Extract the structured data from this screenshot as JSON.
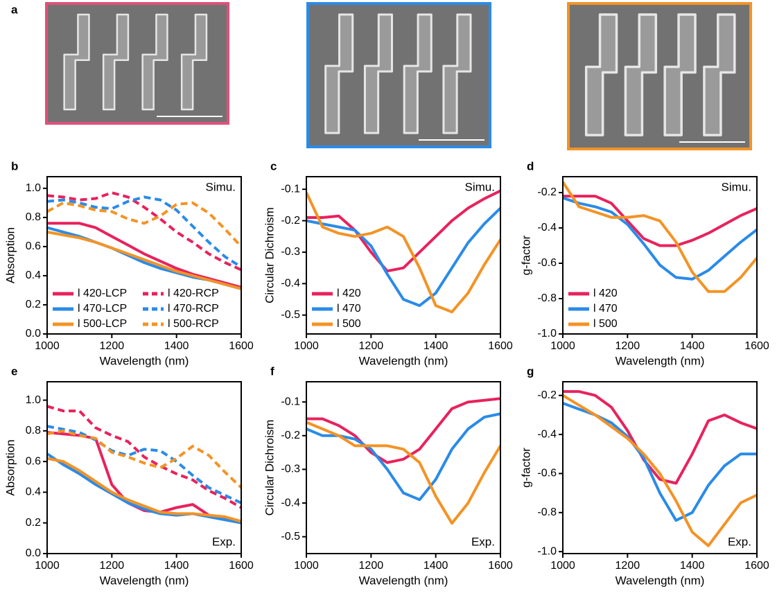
{
  "panel_a": {
    "label": "a"
  },
  "chart_data": [
    {
      "type": "line",
      "panel_label": "b",
      "annotation": "Simu.",
      "xlabel": "Wavelength (nm)",
      "ylabel": "Absorption",
      "x": [
        1000,
        1050,
        1100,
        1150,
        1200,
        1250,
        1300,
        1350,
        1400,
        1450,
        1500,
        1550,
        1600
      ],
      "xlim": [
        1000,
        1600
      ],
      "xticks": [
        1000,
        1200,
        1400,
        1600
      ],
      "ylim": [
        0,
        1.08
      ],
      "yticks": [
        {
          "value": 0,
          "label": "0.0"
        },
        0.2,
        0.4,
        0.6,
        0.8,
        {
          "value": 1,
          "label": "1.0"
        }
      ],
      "legend": "lower left",
      "legend_columns": 2,
      "series": [
        {
          "name": "l 420-LCP",
          "color": "#e8225c",
          "style": "solid",
          "values": [
            0.76,
            0.76,
            0.76,
            0.73,
            0.67,
            0.61,
            0.55,
            0.5,
            0.45,
            0.41,
            0.38,
            0.35,
            0.32
          ]
        },
        {
          "name": "l 470-LCP",
          "color": "#2a8be8",
          "style": "solid",
          "values": [
            0.73,
            0.7,
            0.67,
            0.63,
            0.59,
            0.54,
            0.49,
            0.45,
            0.42,
            0.39,
            0.37,
            0.34,
            0.31
          ]
        },
        {
          "name": "l 500-LCP",
          "color": "#f39325",
          "style": "solid",
          "values": [
            0.7,
            0.68,
            0.66,
            0.63,
            0.59,
            0.55,
            0.51,
            0.47,
            0.43,
            0.4,
            0.37,
            0.34,
            0.31
          ]
        },
        {
          "name": "l 420-RCP",
          "color": "#e8225c",
          "style": "dashed",
          "values": [
            0.95,
            0.94,
            0.92,
            0.93,
            0.97,
            0.94,
            0.87,
            0.79,
            0.7,
            0.63,
            0.55,
            0.49,
            0.44
          ]
        },
        {
          "name": "l 470-RCP",
          "color": "#2a8be8",
          "style": "dashed",
          "values": [
            0.91,
            0.92,
            0.9,
            0.87,
            0.86,
            0.91,
            0.94,
            0.92,
            0.85,
            0.74,
            0.63,
            0.53,
            0.46
          ]
        },
        {
          "name": "l 500-RCP",
          "color": "#f39325",
          "style": "dashed",
          "values": [
            0.84,
            0.9,
            0.88,
            0.85,
            0.84,
            0.79,
            0.76,
            0.81,
            0.89,
            0.9,
            0.83,
            0.72,
            0.6
          ]
        }
      ]
    },
    {
      "type": "line",
      "panel_label": "c",
      "annotation": "Simu.",
      "xlabel": "Wavelength (nm)",
      "ylabel": "Circular Dichroism",
      "x": [
        1000,
        1050,
        1100,
        1150,
        1200,
        1250,
        1300,
        1350,
        1400,
        1450,
        1500,
        1550,
        1600
      ],
      "xlim": [
        1000,
        1600
      ],
      "xticks": [
        1000,
        1200,
        1400,
        1600
      ],
      "ylim": [
        -0.56,
        -0.06
      ],
      "yticks": [
        -0.5,
        -0.4,
        -0.3,
        -0.2,
        -0.1
      ],
      "legend": "lower left",
      "legend_columns": 1,
      "series": [
        {
          "name": "l 420",
          "color": "#e8225c",
          "style": "solid",
          "values": [
            -0.19,
            -0.19,
            -0.185,
            -0.23,
            -0.3,
            -0.36,
            -0.35,
            -0.3,
            -0.25,
            -0.2,
            -0.16,
            -0.13,
            -0.105
          ]
        },
        {
          "name": "l 470",
          "color": "#2a8be8",
          "style": "solid",
          "values": [
            -0.2,
            -0.21,
            -0.22,
            -0.23,
            -0.28,
            -0.37,
            -0.45,
            -0.47,
            -0.43,
            -0.35,
            -0.27,
            -0.21,
            -0.16
          ]
        },
        {
          "name": "l 500",
          "color": "#f39325",
          "style": "solid",
          "values": [
            -0.11,
            -0.22,
            -0.24,
            -0.25,
            -0.24,
            -0.22,
            -0.25,
            -0.35,
            -0.47,
            -0.49,
            -0.43,
            -0.34,
            -0.26
          ]
        }
      ]
    },
    {
      "type": "line",
      "panel_label": "d",
      "annotation": "Simu.",
      "xlabel": "Wavelength (nm)",
      "ylabel": "g-factor",
      "x": [
        1000,
        1050,
        1100,
        1150,
        1200,
        1250,
        1300,
        1350,
        1400,
        1450,
        1500,
        1550,
        1600
      ],
      "xlim": [
        1000,
        1600
      ],
      "xticks": [
        1000,
        1200,
        1400,
        1600
      ],
      "ylim": [
        -1.0,
        -0.11
      ],
      "yticks": [
        {
          "value": -1,
          "label": "-1.0"
        },
        -0.8,
        -0.6,
        -0.4,
        -0.2
      ],
      "legend": "lower left",
      "legend_columns": 1,
      "series": [
        {
          "name": "l 420",
          "color": "#e8225c",
          "style": "solid",
          "values": [
            -0.22,
            -0.22,
            -0.22,
            -0.26,
            -0.36,
            -0.46,
            -0.5,
            -0.5,
            -0.47,
            -0.43,
            -0.38,
            -0.33,
            -0.29
          ]
        },
        {
          "name": "l 470",
          "color": "#2a8be8",
          "style": "solid",
          "values": [
            -0.23,
            -0.26,
            -0.28,
            -0.31,
            -0.38,
            -0.49,
            -0.61,
            -0.68,
            -0.69,
            -0.64,
            -0.56,
            -0.48,
            -0.41
          ]
        },
        {
          "name": "l 500",
          "color": "#f39325",
          "style": "solid",
          "values": [
            -0.14,
            -0.28,
            -0.31,
            -0.34,
            -0.34,
            -0.33,
            -0.36,
            -0.48,
            -0.65,
            -0.76,
            -0.76,
            -0.68,
            -0.57
          ]
        }
      ]
    },
    {
      "type": "line",
      "panel_label": "e",
      "annotation": "Exp.",
      "xlabel": "Wavelength (nm)",
      "ylabel": "Absorption",
      "x": [
        1000,
        1050,
        1100,
        1150,
        1200,
        1250,
        1300,
        1350,
        1400,
        1450,
        1500,
        1550,
        1600
      ],
      "xlim": [
        1000,
        1600
      ],
      "xticks": [
        1000,
        1200,
        1400,
        1600
      ],
      "ylim": [
        0,
        1.12
      ],
      "yticks": [
        {
          "value": 0,
          "label": "0.0"
        },
        0.2,
        0.4,
        0.6,
        0.8,
        {
          "value": 1,
          "label": "1.0"
        }
      ],
      "series": [
        {
          "name": "l 420-LCP",
          "color": "#e8225c",
          "style": "solid",
          "values": [
            0.79,
            0.78,
            0.77,
            0.75,
            0.45,
            0.33,
            0.28,
            0.27,
            0.3,
            0.32,
            0.25,
            0.23,
            0.2
          ]
        },
        {
          "name": "l 470-LCP",
          "color": "#2a8be8",
          "style": "solid",
          "values": [
            0.65,
            0.58,
            0.52,
            0.45,
            0.39,
            0.33,
            0.29,
            0.26,
            0.25,
            0.26,
            0.24,
            0.22,
            0.2
          ]
        },
        {
          "name": "l 500-LCP",
          "color": "#f39325",
          "style": "solid",
          "values": [
            0.62,
            0.6,
            0.54,
            0.47,
            0.4,
            0.35,
            0.31,
            0.27,
            0.26,
            0.26,
            0.25,
            0.24,
            0.21
          ]
        },
        {
          "name": "l 420-RCP",
          "color": "#e8225c",
          "style": "dashed",
          "values": [
            0.96,
            0.93,
            0.93,
            0.82,
            0.77,
            0.73,
            0.63,
            0.57,
            0.52,
            0.48,
            0.41,
            0.36,
            0.3
          ]
        },
        {
          "name": "l 470-RCP",
          "color": "#2a8be8",
          "style": "dashed",
          "values": [
            0.83,
            0.81,
            0.79,
            0.74,
            0.67,
            0.64,
            0.68,
            0.67,
            0.6,
            0.51,
            0.43,
            0.38,
            0.33
          ]
        },
        {
          "name": "l 500-RCP",
          "color": "#f39325",
          "style": "dashed",
          "values": [
            0.78,
            0.8,
            0.77,
            0.75,
            0.66,
            0.63,
            0.59,
            0.56,
            0.62,
            0.7,
            0.64,
            0.53,
            0.43
          ]
        }
      ]
    },
    {
      "type": "line",
      "panel_label": "f",
      "annotation": "Exp.",
      "xlabel": "Wavelength (nm)",
      "ylabel": "Circular Dichroism",
      "x": [
        1000,
        1050,
        1100,
        1150,
        1200,
        1250,
        1300,
        1350,
        1400,
        1450,
        1500,
        1550,
        1600
      ],
      "xlim": [
        1000,
        1600
      ],
      "xticks": [
        1000,
        1200,
        1400,
        1600
      ],
      "ylim": [
        -0.55,
        -0.04
      ],
      "yticks": [
        -0.5,
        -0.4,
        -0.3,
        -0.2,
        -0.1
      ],
      "series": [
        {
          "name": "l 420",
          "color": "#e8225c",
          "style": "solid",
          "values": [
            -0.15,
            -0.15,
            -0.17,
            -0.2,
            -0.25,
            -0.28,
            -0.27,
            -0.24,
            -0.18,
            -0.12,
            -0.1,
            -0.095,
            -0.09
          ]
        },
        {
          "name": "l 470",
          "color": "#2a8be8",
          "style": "solid",
          "values": [
            -0.18,
            -0.2,
            -0.2,
            -0.21,
            -0.24,
            -0.3,
            -0.37,
            -0.39,
            -0.33,
            -0.24,
            -0.18,
            -0.145,
            -0.135
          ]
        },
        {
          "name": "l 500",
          "color": "#f39325",
          "style": "solid",
          "values": [
            -0.16,
            -0.18,
            -0.2,
            -0.23,
            -0.23,
            -0.23,
            -0.24,
            -0.28,
            -0.38,
            -0.46,
            -0.4,
            -0.31,
            -0.23
          ]
        }
      ]
    },
    {
      "type": "line",
      "panel_label": "g",
      "annotation": "Exp.",
      "xlabel": "Wavelength (nm)",
      "ylabel": "g-factor",
      "x": [
        1000,
        1050,
        1100,
        1150,
        1200,
        1250,
        1300,
        1350,
        1400,
        1450,
        1500,
        1550,
        1600
      ],
      "xlim": [
        1000,
        1600
      ],
      "xticks": [
        1000,
        1200,
        1400,
        1600
      ],
      "ylim": [
        -1.01,
        -0.13
      ],
      "yticks": [
        {
          "value": -1,
          "label": "-1.0"
        },
        -0.8,
        -0.6,
        -0.4,
        -0.2
      ],
      "series": [
        {
          "name": "l 420",
          "color": "#e8225c",
          "style": "solid",
          "values": [
            -0.18,
            -0.18,
            -0.2,
            -0.26,
            -0.38,
            -0.53,
            -0.63,
            -0.65,
            -0.5,
            -0.33,
            -0.3,
            -0.34,
            -0.37
          ]
        },
        {
          "name": "l 470",
          "color": "#2a8be8",
          "style": "solid",
          "values": [
            -0.24,
            -0.27,
            -0.3,
            -0.34,
            -0.41,
            -0.52,
            -0.7,
            -0.84,
            -0.8,
            -0.66,
            -0.56,
            -0.5,
            -0.5
          ]
        },
        {
          "name": "l 500",
          "color": "#f39325",
          "style": "solid",
          "values": [
            -0.2,
            -0.25,
            -0.3,
            -0.36,
            -0.42,
            -0.5,
            -0.6,
            -0.74,
            -0.9,
            -0.97,
            -0.86,
            -0.75,
            -0.71
          ]
        }
      ]
    }
  ]
}
